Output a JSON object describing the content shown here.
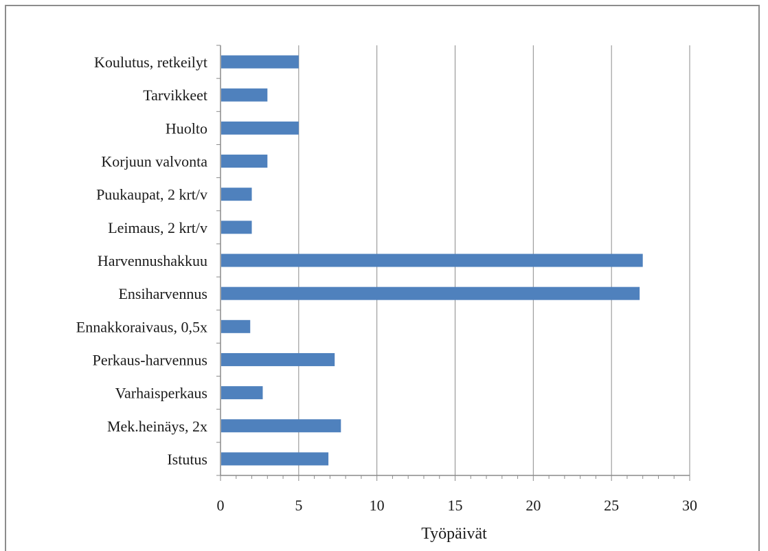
{
  "chart_data": {
    "type": "bar",
    "orientation": "horizontal",
    "categories": [
      "Koulutus, retkeilyt",
      "Tarvikkeet",
      "Huolto",
      "Korjuun valvonta",
      "Puukaupat, 2 krt/v",
      "Leimaus, 2 krt/v",
      "Harvennushakkuu",
      "Ensiharvennus",
      "Ennakkoraivaus, 0,5x",
      "Perkaus-harvennus",
      "Varhaisperkaus",
      "Mek.heinäys, 2x",
      "Istutus"
    ],
    "values": [
      5,
      3,
      5,
      3,
      2,
      2,
      27,
      26.8,
      1.9,
      7.3,
      2.7,
      7.7,
      6.9
    ],
    "xlabel": "Työpäivät",
    "ylabel": "",
    "xlim": [
      0,
      30
    ],
    "xticks": [
      "0",
      "5",
      "10",
      "15",
      "20",
      "25",
      "30"
    ],
    "grid": "vertical",
    "bar_color": "#4f81bd"
  }
}
